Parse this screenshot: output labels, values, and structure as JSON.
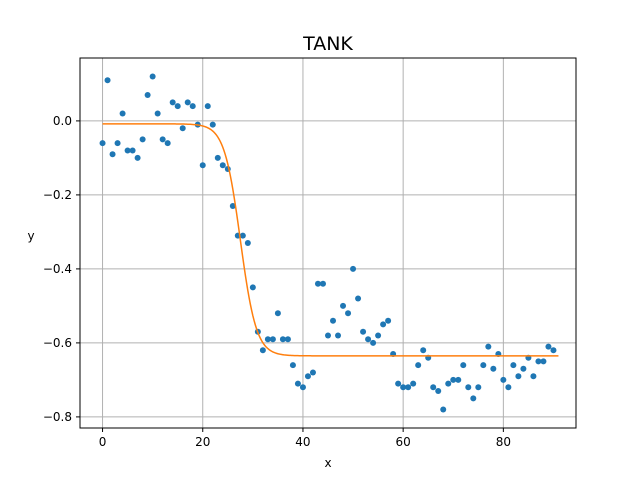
{
  "chart_data": {
    "type": "scatter",
    "title": "TANK",
    "xlabel": "x",
    "ylabel": "y",
    "xlim": [
      -4.5,
      94.5
    ],
    "ylim": [
      -0.83,
      0.17
    ],
    "xticks": [
      0,
      20,
      40,
      60,
      80
    ],
    "yticks": [
      0.0,
      -0.2,
      -0.4,
      -0.6,
      -0.8
    ],
    "xtick_labels": [
      "0",
      "20",
      "40",
      "60",
      "80"
    ],
    "ytick_labels": [
      "0.0",
      "−0.2",
      "−0.4",
      "−0.6",
      "−0.8"
    ],
    "grid": true,
    "series": [
      {
        "kind": "scatter",
        "color": "#1f77b4",
        "x": [
          0,
          1,
          2,
          3,
          4,
          5,
          6,
          7,
          8,
          9,
          10,
          11,
          12,
          13,
          14,
          15,
          16,
          17,
          18,
          19,
          20,
          21,
          22,
          23,
          24,
          25,
          26,
          27,
          28,
          29,
          30,
          31,
          32,
          33,
          34,
          35,
          36,
          37,
          38,
          39,
          40,
          41,
          42,
          43,
          44,
          45,
          46,
          47,
          48,
          49,
          50,
          51,
          52,
          53,
          54,
          55,
          56,
          57,
          58,
          59,
          60,
          61,
          62,
          63,
          64,
          65,
          66,
          67,
          68,
          69,
          70,
          71,
          72,
          73,
          74,
          75,
          76,
          77,
          78,
          79,
          80,
          81,
          82,
          83,
          84,
          85,
          86,
          87,
          88,
          89,
          90
        ],
        "y": [
          -0.06,
          0.11,
          -0.09,
          -0.06,
          0.02,
          -0.08,
          -0.08,
          -0.1,
          -0.05,
          0.07,
          0.12,
          0.02,
          -0.05,
          -0.06,
          0.05,
          0.04,
          -0.02,
          0.05,
          0.04,
          -0.01,
          -0.12,
          0.04,
          -0.01,
          -0.1,
          -0.12,
          -0.13,
          -0.23,
          -0.31,
          -0.31,
          -0.33,
          -0.45,
          -0.57,
          -0.62,
          -0.59,
          -0.59,
          -0.52,
          -0.59,
          -0.59,
          -0.66,
          -0.71,
          -0.72,
          -0.69,
          -0.68,
          -0.44,
          -0.44,
          -0.58,
          -0.54,
          -0.58,
          -0.5,
          -0.52,
          -0.4,
          -0.48,
          -0.57,
          -0.59,
          -0.6,
          -0.58,
          -0.55,
          -0.54,
          -0.63,
          -0.71,
          -0.72,
          -0.72,
          -0.71,
          -0.66,
          -0.62,
          -0.64,
          -0.72,
          -0.73,
          -0.78,
          -0.71,
          -0.7,
          -0.7,
          -0.66,
          -0.72,
          -0.75,
          -0.72,
          -0.66,
          -0.61,
          -0.67,
          -0.63,
          -0.7,
          -0.72,
          -0.66,
          -0.69,
          -0.67,
          -0.64,
          -0.69,
          -0.65,
          -0.65,
          -0.61,
          -0.62
        ]
      },
      {
        "kind": "line",
        "color": "#ff7f0e",
        "model": {
          "type": "logistic",
          "top": -0.008,
          "bottom": -0.635,
          "center": 27.5,
          "scale": 1.6
        },
        "x_range": [
          0,
          91
        ]
      }
    ]
  }
}
